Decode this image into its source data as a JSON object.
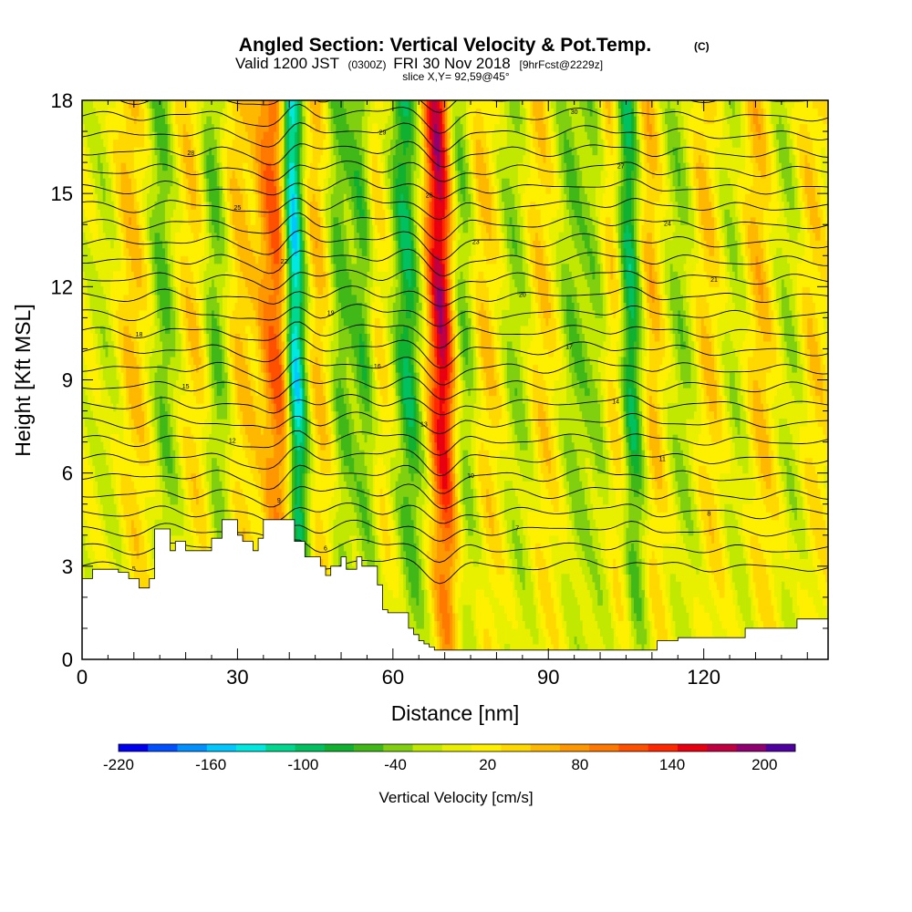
{
  "header": {
    "title": "Angled Section: Vertical Velocity & Pot.Temp.",
    "title_unit": "(C)",
    "valid_prefix": "Valid 1200 JST",
    "valid_utc": "(0300Z)",
    "valid_date": "FRI 30 Nov 2018",
    "forecast_tag": "[9hrFcst@2229z]",
    "slice_info": "slice X,Y= 92,59@45°"
  },
  "chart_data": {
    "type": "heatmap",
    "xlabel": "Distance [nm]",
    "ylabel": "Height [Kft MSL]",
    "xlim": [
      0,
      144
    ],
    "ylim": [
      0,
      18
    ],
    "x_ticks": [
      0,
      30,
      60,
      90,
      120
    ],
    "y_ticks": [
      0,
      3,
      6,
      9,
      12,
      15,
      18
    ],
    "colorbar": {
      "label": "Vertical Velocity [cm/s]",
      "tick_values": [
        -220,
        -160,
        -100,
        -40,
        20,
        80,
        140,
        200
      ],
      "tick_labels": [
        "-220",
        "-160",
        "-100",
        "-40",
        "20",
        "80",
        "140",
        "200"
      ],
      "range": [
        -220,
        220
      ],
      "colors": [
        "#0000f0",
        "#0050ff",
        "#0090ff",
        "#00c8ff",
        "#00e8e0",
        "#00d890",
        "#00c060",
        "#10b030",
        "#40b818",
        "#80d010",
        "#c0e800",
        "#e8f000",
        "#fff000",
        "#ffd800",
        "#ffb800",
        "#ff9800",
        "#ff7800",
        "#ff5000",
        "#ff2800",
        "#e80010",
        "#c00040",
        "#900070",
        "#5000a0"
      ]
    },
    "w_features": [
      {
        "x": 5,
        "w": -20,
        "sigma": 2.5
      },
      {
        "x": 10,
        "w": 45,
        "sigma": 3
      },
      {
        "x": 16,
        "w": -55,
        "sigma": 2.5
      },
      {
        "x": 22,
        "w": 40,
        "sigma": 3
      },
      {
        "x": 26,
        "w": -60,
        "sigma": 2.5
      },
      {
        "x": 31,
        "w": 45,
        "sigma": 3
      },
      {
        "x": 36,
        "w": 60,
        "sigma": 2
      },
      {
        "x": 39,
        "w": 130,
        "sigma": 2.2
      },
      {
        "x": 41,
        "w": -190,
        "sigma": 2.2
      },
      {
        "x": 46,
        "w": 50,
        "sigma": 2.5
      },
      {
        "x": 50,
        "w": -55,
        "sigma": 2.5
      },
      {
        "x": 55,
        "w": -70,
        "sigma": 2.5
      },
      {
        "x": 57,
        "w": 50,
        "sigma": 2
      },
      {
        "x": 63,
        "w": -90,
        "sigma": 2.5
      },
      {
        "x": 68,
        "w": 60,
        "sigma": 2
      },
      {
        "x": 70,
        "w": 140,
        "sigma": 2.2
      },
      {
        "x": 74,
        "w": -55,
        "sigma": 2.5
      },
      {
        "x": 78,
        "w": 45,
        "sigma": 3
      },
      {
        "x": 84,
        "w": -40,
        "sigma": 3
      },
      {
        "x": 89,
        "w": 40,
        "sigma": 3
      },
      {
        "x": 95,
        "w": -45,
        "sigma": 3
      },
      {
        "x": 100,
        "w": -40,
        "sigma": 2.5
      },
      {
        "x": 103,
        "w": 60,
        "sigma": 2.5
      },
      {
        "x": 106,
        "w": -110,
        "sigma": 2.5
      },
      {
        "x": 110,
        "w": 55,
        "sigma": 2.5
      },
      {
        "x": 116,
        "w": -40,
        "sigma": 3
      },
      {
        "x": 121,
        "w": 45,
        "sigma": 3
      },
      {
        "x": 126,
        "w": -30,
        "sigma": 3
      },
      {
        "x": 131,
        "w": 50,
        "sigma": 3
      },
      {
        "x": 137,
        "w": -35,
        "sigma": 3
      },
      {
        "x": 141,
        "w": 40,
        "sigma": 3
      }
    ],
    "terrain": {
      "x": [
        0,
        2,
        2,
        7,
        7,
        9,
        9,
        10,
        10,
        11,
        11,
        13,
        13,
        14,
        14,
        17,
        17,
        18,
        18,
        20,
        20,
        25,
        25,
        27,
        27,
        30,
        30,
        31,
        31,
        33,
        33,
        34,
        34,
        35,
        35,
        37,
        37,
        38,
        38,
        41,
        41,
        43,
        43,
        46,
        46,
        47,
        47,
        48,
        48,
        50,
        50,
        51,
        51,
        53,
        53,
        54,
        54,
        57,
        57,
        58,
        58,
        59,
        59,
        63,
        63,
        64,
        64,
        65,
        65,
        66,
        66,
        67,
        67,
        68,
        68,
        69,
        69,
        111,
        111,
        115,
        115,
        128,
        128,
        138,
        138,
        144,
        144,
        0
      ],
      "y": [
        2.6,
        2.6,
        2.9,
        2.9,
        2.8,
        2.8,
        2.6,
        2.6,
        2.6,
        2.6,
        2.3,
        2.3,
        2.6,
        2.6,
        4.2,
        4.2,
        3.5,
        3.5,
        3.8,
        3.8,
        3.5,
        3.5,
        3.9,
        3.9,
        4.5,
        4.5,
        4.0,
        4.0,
        3.8,
        3.8,
        3.5,
        3.5,
        3.9,
        3.9,
        4.5,
        4.5,
        4.5,
        4.5,
        4.5,
        4.5,
        3.8,
        3.8,
        3.3,
        3.3,
        3.0,
        3.0,
        2.7,
        2.7,
        3.0,
        3.0,
        3.3,
        3.3,
        2.9,
        2.9,
        3.3,
        3.3,
        3.0,
        3.0,
        2.4,
        2.4,
        1.6,
        1.6,
        1.5,
        1.5,
        1.0,
        1.0,
        0.8,
        0.8,
        0.6,
        0.6,
        0.5,
        0.5,
        0.4,
        0.4,
        0.3,
        0.3,
        0.3,
        0.3,
        0.6,
        0.6,
        0.7,
        0.7,
        1.0,
        1.0,
        1.3,
        1.3,
        0,
        0
      ]
    },
    "theta_contours": {
      "count": 27,
      "base_height": 3.0,
      "spacing": 0.58,
      "labels": [
        "5",
        "6",
        "7",
        "8",
        "9",
        "10",
        "11",
        "12",
        "13",
        "14",
        "15",
        "16",
        "17",
        "18",
        "19",
        "20",
        "21",
        "22",
        "23",
        "24",
        "25",
        "26",
        "27",
        "28",
        "29",
        "30",
        "31"
      ]
    }
  }
}
